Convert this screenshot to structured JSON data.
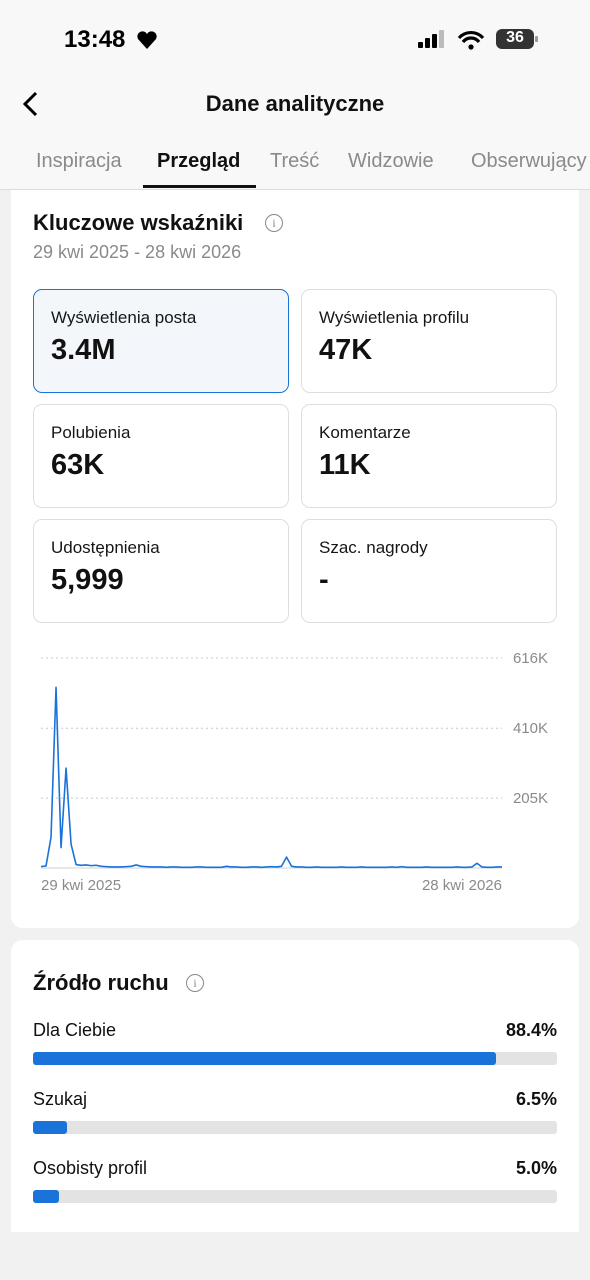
{
  "status_bar": {
    "time": "13:48",
    "battery": "36"
  },
  "header": {
    "title": "Dane analityczne"
  },
  "tabs": [
    "Inspiracja",
    "Przegląd",
    "Treść",
    "Widzowie",
    "Obserwujący"
  ],
  "active_tab": 1,
  "key_metrics": {
    "title": "Kluczowe wskaźniki",
    "date_range": "29 kwi 2025 - 28 kwi 2026",
    "cards": [
      {
        "label": "Wyświetlenia posta",
        "value": "3.4M"
      },
      {
        "label": "Wyświetlenia profilu",
        "value": "47K"
      },
      {
        "label": "Polubienia",
        "value": "63K"
      },
      {
        "label": "Komentarze",
        "value": "11K"
      },
      {
        "label": "Udostępnienia",
        "value": "5,999"
      },
      {
        "label": "Szac. nagrody",
        "value": "-"
      }
    ]
  },
  "chart_data": {
    "type": "line",
    "color": "#1a73d9",
    "grid": true,
    "categories": [
      "29 kwi 2025",
      null,
      null,
      null,
      null,
      null,
      null,
      null,
      null,
      null,
      null,
      null,
      null,
      null,
      null,
      null,
      null,
      null,
      null,
      null,
      null,
      null,
      null,
      null,
      null,
      null,
      null,
      null,
      null,
      null,
      null,
      null,
      null,
      null,
      null,
      null,
      null,
      null,
      null,
      null,
      null,
      null,
      null,
      null,
      null,
      null,
      null,
      null,
      null,
      null,
      null,
      null,
      null,
      null,
      null,
      null,
      null,
      null,
      null,
      null,
      null,
      null,
      null,
      null,
      null,
      null,
      null,
      null,
      null,
      null,
      null,
      null,
      null,
      null,
      null,
      null,
      null,
      null,
      null,
      null,
      null,
      null,
      null,
      null,
      null,
      null,
      null,
      null,
      null,
      null,
      null,
      null,
      "28 kwi 2026"
    ],
    "values": [
      4000,
      6000,
      90000,
      530000,
      60000,
      293000,
      70000,
      10000,
      8000,
      9000,
      7000,
      8000,
      5000,
      4000,
      3000,
      3000,
      3000,
      4000,
      5000,
      9000,
      5000,
      4000,
      3000,
      3000,
      3000,
      2000,
      3000,
      3000,
      2000,
      2000,
      2000,
      3000,
      3000,
      2000,
      2000,
      2000,
      2000,
      5000,
      3000,
      3000,
      2000,
      2000,
      3000,
      3000,
      2000,
      3000,
      4000,
      3000,
      5000,
      32000,
      5000,
      3000,
      3000,
      2000,
      2000,
      3000,
      2000,
      2000,
      2000,
      2000,
      3000,
      2000,
      2000,
      2000,
      3000,
      2000,
      2000,
      2000,
      2000,
      2000,
      3000,
      2000,
      4000,
      2000,
      2000,
      2000,
      2000,
      3000,
      2000,
      2000,
      2000,
      2000,
      2000,
      3000,
      2000,
      2000,
      3000,
      14000,
      3000,
      2000,
      2000,
      3000,
      3000
    ],
    "ylim": [
      0,
      616000
    ],
    "yticks": [
      {
        "value": 205000,
        "label": "205K"
      },
      {
        "value": 410000,
        "label": "410K"
      },
      {
        "value": 616000,
        "label": "616K"
      }
    ]
  },
  "traffic_source": {
    "title": "Źródło ruchu",
    "color": "#1a73d9",
    "items": [
      {
        "name": "Dla Ciebie",
        "value": 88.4,
        "label": "88.4%"
      },
      {
        "name": "Szukaj",
        "value": 6.5,
        "label": "6.5%"
      },
      {
        "name": "Osobisty profil",
        "value": 5.0,
        "label": "5.0%"
      }
    ]
  }
}
